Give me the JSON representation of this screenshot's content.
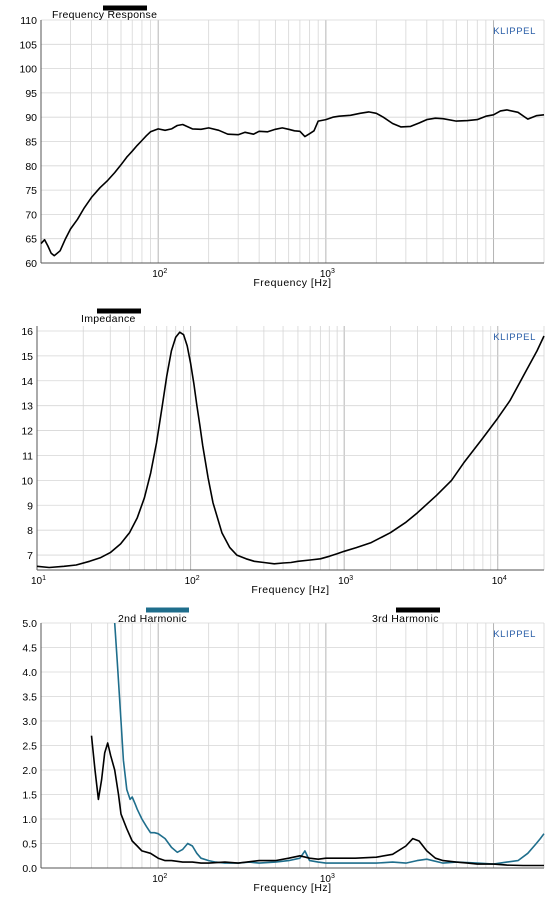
{
  "chart_data": [
    {
      "type": "line",
      "xscale": "log",
      "xlim": [
        20,
        20000
      ],
      "ylim": [
        60,
        110
      ],
      "yticks": [
        60,
        65,
        70,
        75,
        80,
        85,
        90,
        95,
        100,
        105,
        110
      ],
      "xticks": [
        {
          "value": 100,
          "label": "10",
          "exp": "2"
        },
        {
          "value": 1000,
          "label": "10",
          "exp": "3"
        }
      ],
      "xlabel": "Frequency  [Hz]",
      "watermark": "KLIPPEL",
      "series": [
        {
          "name": "Frequency Response",
          "color": "#000000",
          "x": [
            20,
            21,
            22,
            23,
            24,
            26,
            28,
            30,
            33,
            36,
            40,
            45,
            50,
            55,
            60,
            65,
            70,
            75,
            80,
            85,
            90,
            100,
            110,
            120,
            130,
            140,
            160,
            180,
            200,
            230,
            260,
            300,
            330,
            370,
            400,
            450,
            500,
            550,
            600,
            650,
            700,
            750,
            800,
            850,
            900,
            1000,
            1100,
            1200,
            1400,
            1600,
            1800,
            2000,
            2200,
            2500,
            2800,
            3200,
            3600,
            4000,
            4500,
            5000,
            6000,
            7000,
            8000,
            9000,
            10000,
            11000,
            12000,
            14000,
            16000,
            18000,
            20000
          ],
          "y": [
            64.0,
            64.8,
            63.5,
            62.0,
            61.5,
            62.5,
            65.0,
            67.0,
            69.0,
            71.2,
            73.5,
            75.5,
            77.0,
            78.6,
            80.2,
            81.8,
            83.0,
            84.2,
            85.2,
            86.2,
            87.0,
            87.6,
            87.3,
            87.6,
            88.3,
            88.5,
            87.6,
            87.5,
            87.8,
            87.3,
            86.5,
            86.4,
            86.9,
            86.5,
            87.1,
            87.0,
            87.5,
            87.8,
            87.5,
            87.2,
            87.1,
            86.0,
            86.6,
            87.2,
            89.2,
            89.5,
            90.0,
            90.2,
            90.4,
            90.8,
            91.1,
            90.8,
            90.0,
            88.7,
            88.0,
            88.1,
            88.8,
            89.5,
            89.8,
            89.7,
            89.2,
            89.3,
            89.5,
            90.2,
            90.5,
            91.3,
            91.5,
            91.0,
            89.6,
            90.3,
            90.5
          ]
        }
      ]
    },
    {
      "type": "line",
      "xscale": "log",
      "xlim": [
        10,
        20000
      ],
      "ylim": [
        6.4,
        16.2
      ],
      "yticks": [
        7,
        8,
        9,
        10,
        11,
        12,
        13,
        14,
        15,
        16
      ],
      "xticks": [
        {
          "value": 10,
          "label": "10",
          "exp": "1"
        },
        {
          "value": 100,
          "label": "10",
          "exp": "2"
        },
        {
          "value": 1000,
          "label": "10",
          "exp": "3"
        },
        {
          "value": 10000,
          "label": "10",
          "exp": "4"
        }
      ],
      "xlabel": "Frequency  [Hz]",
      "watermark": "KLIPPEL",
      "series": [
        {
          "name": "Impedance",
          "color": "#000000",
          "x": [
            10,
            12,
            15,
            18,
            22,
            26,
            30,
            35,
            40,
            45,
            50,
            55,
            60,
            65,
            70,
            75,
            80,
            85,
            90,
            95,
            100,
            105,
            110,
            115,
            120,
            130,
            140,
            160,
            180,
            200,
            230,
            260,
            300,
            350,
            400,
            450,
            500,
            600,
            700,
            800,
            900,
            1000,
            1200,
            1500,
            2000,
            2500,
            3000,
            4000,
            5000,
            6000,
            8000,
            10000,
            12000,
            15000,
            18000,
            20000
          ],
          "y": [
            6.55,
            6.5,
            6.55,
            6.6,
            6.75,
            6.9,
            7.1,
            7.45,
            7.9,
            8.5,
            9.3,
            10.3,
            11.5,
            12.9,
            14.2,
            15.2,
            15.75,
            15.95,
            15.85,
            15.4,
            14.7,
            13.9,
            13.0,
            12.2,
            11.4,
            10.1,
            9.1,
            7.9,
            7.3,
            7.0,
            6.85,
            6.75,
            6.7,
            6.65,
            6.68,
            6.7,
            6.75,
            6.8,
            6.85,
            6.95,
            7.05,
            7.15,
            7.3,
            7.5,
            7.9,
            8.3,
            8.7,
            9.4,
            10.0,
            10.7,
            11.7,
            12.5,
            13.2,
            14.3,
            15.2,
            15.8
          ]
        }
      ]
    },
    {
      "type": "line",
      "xscale": "log",
      "xlim": [
        20,
        20000
      ],
      "ylim": [
        0,
        5.0
      ],
      "yticks": [
        0,
        0.5,
        1.0,
        1.5,
        2.0,
        2.5,
        3.0,
        3.5,
        4.0,
        4.5,
        5.0
      ],
      "ytick_labels": [
        "0.0",
        "0.5",
        "1.0",
        "1.5",
        "2.0",
        "2.5",
        "3.0",
        "3.5",
        "4.0",
        "4.5",
        "5.0"
      ],
      "xticks": [
        {
          "value": 100,
          "label": "10",
          "exp": "2"
        },
        {
          "value": 1000,
          "label": "10",
          "exp": "3"
        }
      ],
      "xlabel": "Frequency  [Hz]",
      "watermark": "KLIPPEL",
      "series": [
        {
          "name": "2nd Harmonic",
          "color": "#1f6e8c",
          "x": [
            55,
            57,
            60,
            62,
            65,
            68,
            70,
            73,
            75,
            80,
            85,
            90,
            95,
            100,
            110,
            120,
            130,
            140,
            150,
            160,
            170,
            180,
            200,
            220,
            250,
            300,
            350,
            400,
            500,
            600,
            700,
            750,
            800,
            900,
            1000,
            1200,
            1500,
            2000,
            2500,
            3000,
            3500,
            4000,
            5000,
            6000,
            8000,
            10000,
            12000,
            14000,
            16000,
            18000,
            19000,
            20000
          ],
          "y": [
            5.0,
            4.2,
            3.0,
            2.2,
            1.6,
            1.4,
            1.45,
            1.3,
            1.2,
            1.0,
            0.85,
            0.72,
            0.72,
            0.7,
            0.6,
            0.42,
            0.32,
            0.38,
            0.5,
            0.45,
            0.3,
            0.2,
            0.15,
            0.12,
            0.1,
            0.1,
            0.12,
            0.1,
            0.12,
            0.15,
            0.2,
            0.35,
            0.15,
            0.12,
            0.1,
            0.1,
            0.1,
            0.1,
            0.12,
            0.1,
            0.15,
            0.18,
            0.1,
            0.12,
            0.1,
            0.08,
            0.12,
            0.15,
            0.3,
            0.5,
            0.6,
            0.7
          ]
        },
        {
          "name": "3rd Harmonic",
          "color": "#000000",
          "x": [
            40,
            42,
            44,
            46,
            48,
            50,
            52,
            55,
            58,
            60,
            65,
            70,
            75,
            80,
            90,
            100,
            110,
            120,
            140,
            160,
            180,
            200,
            250,
            300,
            400,
            500,
            600,
            700,
            800,
            900,
            1000,
            1200,
            1500,
            2000,
            2500,
            3000,
            3300,
            3600,
            4000,
            4500,
            5000,
            6000,
            7000,
            8000,
            10000,
            12000,
            15000,
            18000,
            20000
          ],
          "y": [
            2.7,
            2.0,
            1.4,
            1.8,
            2.35,
            2.55,
            2.3,
            2.0,
            1.5,
            1.1,
            0.8,
            0.55,
            0.45,
            0.35,
            0.3,
            0.2,
            0.15,
            0.15,
            0.12,
            0.12,
            0.1,
            0.1,
            0.12,
            0.1,
            0.15,
            0.15,
            0.2,
            0.25,
            0.2,
            0.18,
            0.2,
            0.2,
            0.2,
            0.22,
            0.28,
            0.45,
            0.6,
            0.55,
            0.35,
            0.2,
            0.15,
            0.12,
            0.1,
            0.08,
            0.08,
            0.06,
            0.05,
            0.05,
            0.05
          ]
        }
      ]
    }
  ]
}
